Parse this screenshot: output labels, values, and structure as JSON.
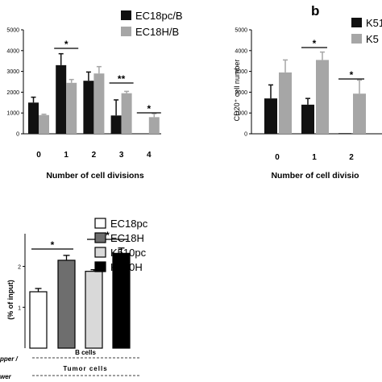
{
  "chart_data": [
    {
      "type": "bar",
      "categories": [
        "0",
        "1",
        "2",
        "3",
        "4"
      ],
      "series": [
        {
          "name": "EC18pc/B",
          "values": [
            1500,
            3300,
            2550,
            880,
            0
          ],
          "errors": [
            260,
            550,
            420,
            750,
            0
          ],
          "color": "#111111"
        },
        {
          "name": "EC18H/B",
          "values": [
            900,
            2450,
            2900,
            1950,
            800
          ],
          "errors": [
            40,
            160,
            330,
            90,
            170
          ],
          "color": "#a6a6a6"
        }
      ],
      "title": "",
      "xlabel": "Number of cell divisions",
      "ylabel": "",
      "ylim": [
        0,
        5000
      ],
      "yticks": [
        "0",
        "1000",
        "2000",
        "3000",
        "4000",
        "5000"
      ],
      "significance": [
        "*",
        "**",
        "*"
      ],
      "legend_position": "top-right"
    },
    {
      "type": "bar",
      "panel_label": "b",
      "categories": [
        "0",
        "1",
        "2"
      ],
      "series": [
        {
          "name": "K51",
          "values": [
            1700,
            1400,
            30
          ],
          "errors": [
            650,
            300,
            0
          ],
          "color": "#111111"
        },
        {
          "name": "K5",
          "values": [
            2950,
            3550,
            1930
          ],
          "errors": [
            600,
            380,
            650
          ],
          "color": "#a6a6a6"
        }
      ],
      "xlabel": "Number of cell divisio",
      "ylabel": "CD20⁺ cell number",
      "ylim": [
        0,
        5000
      ],
      "yticks": [
        "0",
        "1000",
        "2000",
        "3000",
        "4000",
        "5000"
      ],
      "significance": [
        "*",
        "*"
      ],
      "legend_position": "top-right"
    },
    {
      "type": "bar",
      "categories": [
        "EC18pc",
        "EC18H",
        "K510pc",
        "K510H"
      ],
      "values": [
        1.38,
        2.15,
        1.88,
        2.32
      ],
      "errors": [
        0.08,
        0.12,
        0.04,
        0.13
      ],
      "colors": [
        "#ffffff",
        "#6e6e6e",
        "#d9d9d9",
        "#000000"
      ],
      "legend": [
        "EC18pc",
        "EC18H",
        "K510pc",
        "K510H"
      ],
      "ylabel": "(% of input)",
      "ylim": [
        0,
        2.8
      ],
      "yticks": [
        "1",
        "2"
      ],
      "significance": [
        "*",
        "*"
      ],
      "group_labels": [
        "B cells",
        "Tumor cells"
      ],
      "side_labels": [
        "pper /",
        "wer"
      ],
      "legend_position": "top-right"
    }
  ]
}
